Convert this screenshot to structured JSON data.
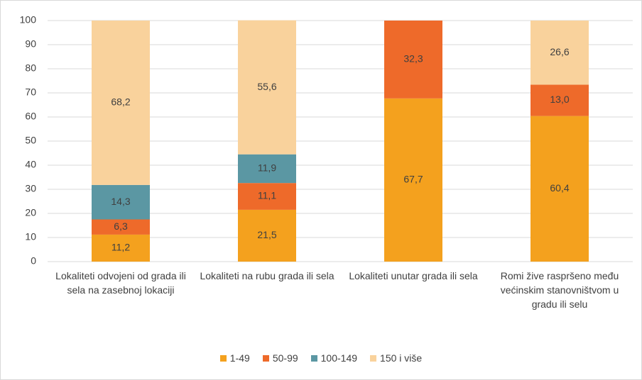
{
  "chart_data": {
    "type": "stacked_bar",
    "categories": [
      "Lokaliteti odvojeni od grada ili sela na zasebnoj lokaciji",
      "Lokaliteti na rubu grada ili sela",
      "Lokaliteti unutar grada ili sela",
      "Romi žive raspršeno među većinskim stanovništvom u gradu ili selu"
    ],
    "series": [
      {
        "name": "1-49",
        "color": "#f4a11e",
        "values": [
          11.2,
          21.5,
          67.7,
          60.4
        ],
        "value_labels": [
          "11,2",
          "21,5",
          "67,7",
          "60,4"
        ]
      },
      {
        "name": "50-99",
        "color": "#ee6a2a",
        "values": [
          6.3,
          11.1,
          32.3,
          13.0
        ],
        "value_labels": [
          "6,3",
          "11,1",
          "32,3",
          "13,0"
        ]
      },
      {
        "name": "100-149",
        "color": "#5b97a3",
        "values": [
          14.3,
          11.9,
          null,
          null
        ],
        "value_labels": [
          "14,3",
          "11,9",
          null,
          null
        ]
      },
      {
        "name": "150 i više",
        "color": "#f9d29c",
        "values": [
          68.2,
          55.6,
          null,
          26.6
        ],
        "value_labels": [
          "68,2",
          "55,6",
          null,
          "26,6"
        ]
      }
    ],
    "ylim": [
      0,
      100
    ],
    "yticks": [
      0,
      10,
      20,
      30,
      40,
      50,
      60,
      70,
      80,
      90,
      100
    ],
    "grid": true,
    "legend": "bottom"
  }
}
